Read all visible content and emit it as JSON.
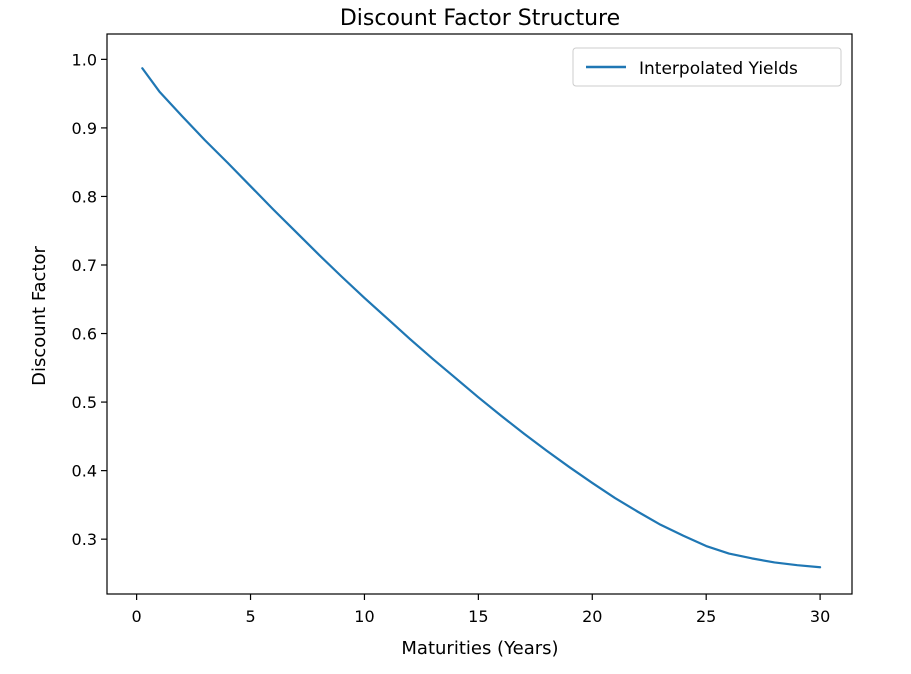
{
  "chart_data": {
    "type": "line",
    "title": "Discount Factor Structure",
    "xlabel": "Maturities (Years)",
    "ylabel": "Discount Factor",
    "xlim": [
      -1.3,
      31.4
    ],
    "ylim": [
      0.22,
      1.037
    ],
    "xticks": [
      0,
      5,
      10,
      15,
      20,
      25,
      30
    ],
    "xtick_labels": [
      "0",
      "5",
      "10",
      "15",
      "20",
      "25",
      "30"
    ],
    "yticks": [
      0.3,
      0.4,
      0.5,
      0.6,
      0.7,
      0.8,
      0.9,
      1.0
    ],
    "ytick_labels": [
      "0.3",
      "0.4",
      "0.5",
      "0.6",
      "0.7",
      "0.8",
      "0.9",
      "1.0"
    ],
    "grid": false,
    "legend_position": "upper right",
    "series": [
      {
        "name": "Interpolated Yields",
        "color": "#1f77b4",
        "x": [
          0.25,
          1,
          2,
          3,
          4,
          5,
          6,
          7,
          8,
          9,
          10,
          11,
          12,
          13,
          14,
          15,
          16,
          17,
          18,
          19,
          20,
          21,
          22,
          23,
          24,
          25,
          26,
          27,
          28,
          29,
          30
        ],
        "y": [
          0.987,
          0.953,
          0.917,
          0.882,
          0.849,
          0.815,
          0.781,
          0.748,
          0.715,
          0.683,
          0.652,
          0.622,
          0.592,
          0.563,
          0.535,
          0.507,
          0.48,
          0.454,
          0.429,
          0.405,
          0.382,
          0.36,
          0.34,
          0.321,
          0.305,
          0.29,
          0.279,
          0.272,
          0.266,
          0.262,
          0.259
        ]
      }
    ]
  }
}
